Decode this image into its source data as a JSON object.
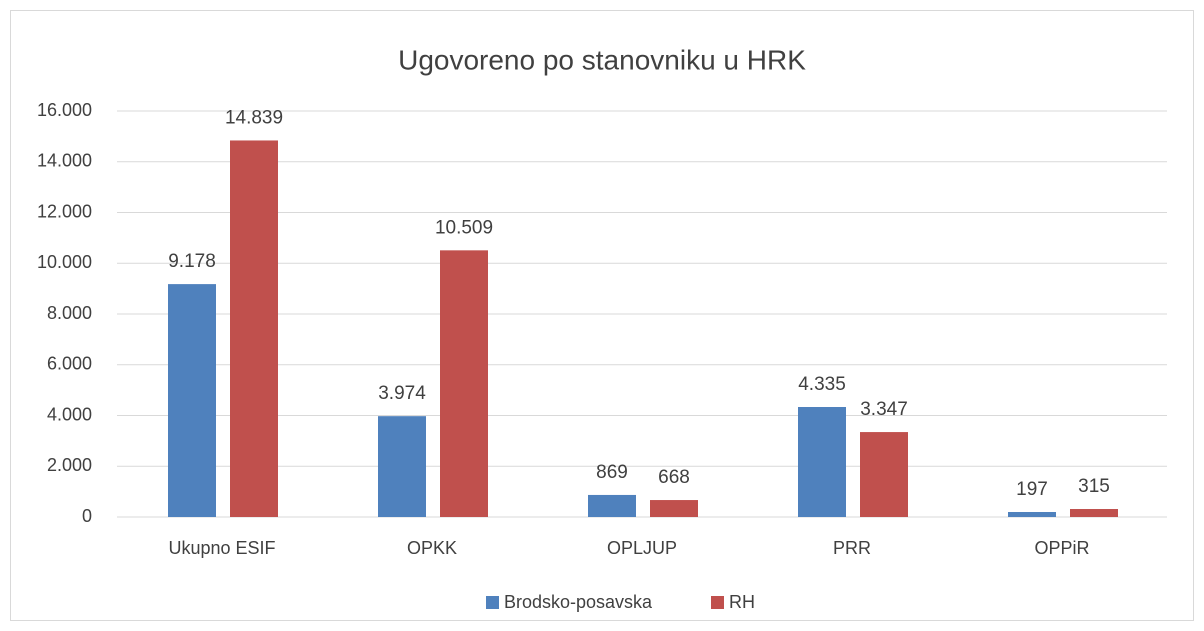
{
  "chart_data": {
    "type": "bar",
    "title": "Ugovoreno po stanovniku u HRK",
    "categories": [
      "Ukupno ESIF",
      "OPKK",
      "OPLJUP",
      "PRR",
      "OPPiR"
    ],
    "series": [
      {
        "name": "Brodsko-posavska",
        "color": "#4f81bd",
        "values": [
          9178,
          3974,
          869,
          4335,
          197
        ],
        "value_labels": [
          "9.178",
          "3.974",
          "869",
          "4.335",
          "197"
        ]
      },
      {
        "name": "RH",
        "color": "#c0504d",
        "values": [
          14839,
          10509,
          668,
          3347,
          315
        ],
        "value_labels": [
          "14.839",
          "10.509",
          "668",
          "3.347",
          "315"
        ]
      }
    ],
    "ylim": [
      0,
      16000
    ],
    "yticks": [
      0,
      {
        "value": 2000,
        "label": "2.000"
      },
      {
        "value": 4000,
        "label": "4.000"
      },
      {
        "value": 6000,
        "label": "6.000"
      },
      {
        "value": 8000,
        "label": "8.000"
      },
      {
        "value": 10000,
        "label": "10.000"
      },
      {
        "value": 12000,
        "label": "12.000"
      },
      {
        "value": 14000,
        "label": "14.000"
      },
      {
        "value": 16000,
        "label": "16.000"
      }
    ],
    "grid": true,
    "legend": "bottom"
  }
}
